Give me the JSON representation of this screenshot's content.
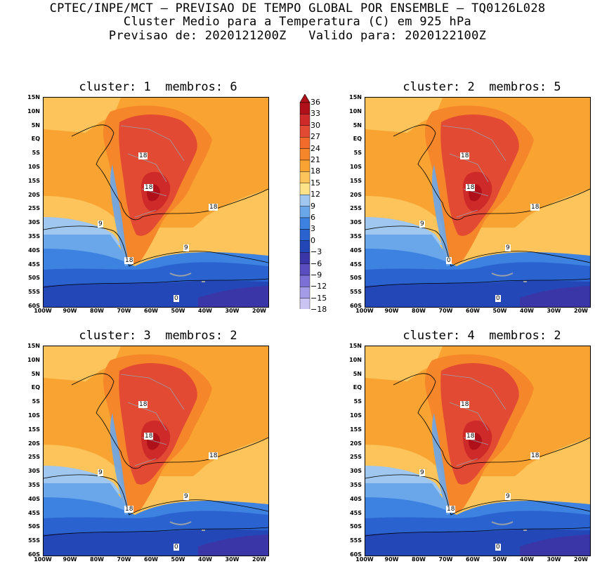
{
  "header": {
    "line1": "CPTEC/INPE/MCT — PREVISAO DE TEMPO GLOBAL POR ENSEMBLE — TQ0126L028",
    "line2": "Cluster Medio para a Temperatura (C) em 925 hPa",
    "line3": "Previsao de: 2020121200Z   Valido para: 2020122100Z"
  },
  "lat_labels": [
    "15N",
    "10N",
    "5N",
    "EQ",
    "5S",
    "10S",
    "15S",
    "20S",
    "25S",
    "30S",
    "35S",
    "40S",
    "45S",
    "50S",
    "55S",
    "60S"
  ],
  "lon_labels": [
    "100W",
    "90W",
    "80W",
    "70W",
    "60W",
    "50W",
    "40W",
    "30W",
    "20W"
  ],
  "colorbar": {
    "levels": [
      "36",
      "33",
      "30",
      "27",
      "24",
      "21",
      "18",
      "15",
      "12",
      "9",
      "6",
      "3",
      "0",
      "−3",
      "−6",
      "−9",
      "−12",
      "−15",
      "−18"
    ],
    "colors": [
      "#b0101a",
      "#cf2a2a",
      "#e34a33",
      "#f26b2b",
      "#f5862a",
      "#f9a432",
      "#fcc45a",
      "#fde28a",
      "#9fc7f0",
      "#6aa6ea",
      "#3d82e0",
      "#2a63cf",
      "#2447b8",
      "#3b36a8",
      "#5a4dc0",
      "#7c6fd6",
      "#a49ce6",
      "#c9c4f2"
    ]
  },
  "panels": [
    {
      "title": "cluster: 1  membros: 6",
      "labels": [
        {
          "text": "18",
          "id": "a"
        },
        {
          "text": "18",
          "id": "b"
        },
        {
          "text": "18",
          "id": "c"
        },
        {
          "text": "9",
          "id": "d"
        },
        {
          "text": "9",
          "id": "e"
        },
        {
          "text": "18",
          "id": "f"
        },
        {
          "text": "0",
          "id": "g"
        }
      ]
    },
    {
      "title": "cluster: 2  membros: 5",
      "labels": [
        {
          "text": "18",
          "id": "a"
        },
        {
          "text": "18",
          "id": "b"
        },
        {
          "text": "18",
          "id": "c"
        },
        {
          "text": "9",
          "id": "d"
        },
        {
          "text": "9",
          "id": "e"
        },
        {
          "text": "0",
          "id": "f"
        },
        {
          "text": "0",
          "id": "g"
        }
      ]
    },
    {
      "title": "cluster: 3  membros: 2",
      "labels": [
        {
          "text": "18",
          "id": "a"
        },
        {
          "text": "18",
          "id": "b"
        },
        {
          "text": "18",
          "id": "c"
        },
        {
          "text": "9",
          "id": "d"
        },
        {
          "text": "9",
          "id": "e"
        },
        {
          "text": "18",
          "id": "f"
        },
        {
          "text": "0",
          "id": "g"
        }
      ]
    },
    {
      "title": "cluster: 4  membros: 2",
      "labels": [
        {
          "text": "18",
          "id": "a"
        },
        {
          "text": "18",
          "id": "b"
        },
        {
          "text": "18",
          "id": "c"
        },
        {
          "text": "9",
          "id": "d"
        },
        {
          "text": "9",
          "id": "e"
        },
        {
          "text": "18",
          "id": "f"
        },
        {
          "text": "0",
          "id": "g"
        }
      ]
    }
  ]
}
